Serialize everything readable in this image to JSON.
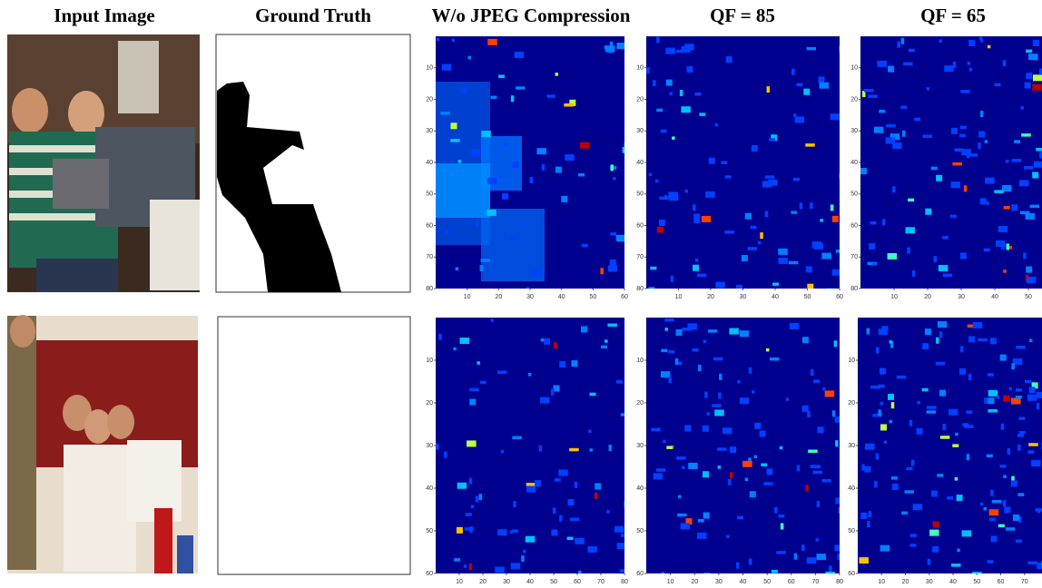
{
  "columns": [
    "Input Image",
    "Ground Truth",
    "W/o JPEG Compression",
    "QF = 85",
    "QF = 65"
  ],
  "rows": [
    {
      "heatmaps": [
        {
          "xlim": [
            0,
            60
          ],
          "ylim": [
            0,
            80
          ],
          "xticks": [
            10,
            20,
            30,
            40,
            50,
            60
          ],
          "yticks": [
            10,
            20,
            30,
            40,
            50,
            60,
            70,
            80
          ]
        },
        {
          "xlim": [
            0,
            60
          ],
          "ylim": [
            0,
            80
          ],
          "xticks": [
            10,
            20,
            30,
            40,
            50,
            60
          ],
          "yticks": [
            10,
            20,
            30,
            40,
            50,
            60,
            70,
            80
          ]
        },
        {
          "xlim": [
            0,
            60
          ],
          "ylim": [
            0,
            80
          ],
          "xticks": [
            10,
            20,
            30,
            40,
            50
          ],
          "yticks": [
            10,
            20,
            30,
            40,
            50,
            60,
            70,
            80
          ]
        }
      ]
    },
    {
      "heatmaps": [
        {
          "xlim": [
            0,
            80
          ],
          "ylim": [
            0,
            60
          ],
          "xticks": [
            10,
            20,
            30,
            40,
            50,
            60,
            70,
            80
          ],
          "yticks": [
            10,
            20,
            30,
            40,
            50,
            60
          ]
        },
        {
          "xlim": [
            0,
            80
          ],
          "ylim": [
            0,
            60
          ],
          "xticks": [
            10,
            20,
            30,
            40,
            50,
            60,
            70,
            80
          ],
          "yticks": [
            10,
            20,
            30,
            40,
            50,
            60
          ]
        },
        {
          "xlim": [
            0,
            80
          ],
          "ylim": [
            0,
            60
          ],
          "xticks": [
            10,
            20,
            30,
            40,
            50,
            60,
            70
          ],
          "yticks": [
            10,
            20,
            30,
            40,
            50,
            60
          ]
        }
      ]
    }
  ]
}
